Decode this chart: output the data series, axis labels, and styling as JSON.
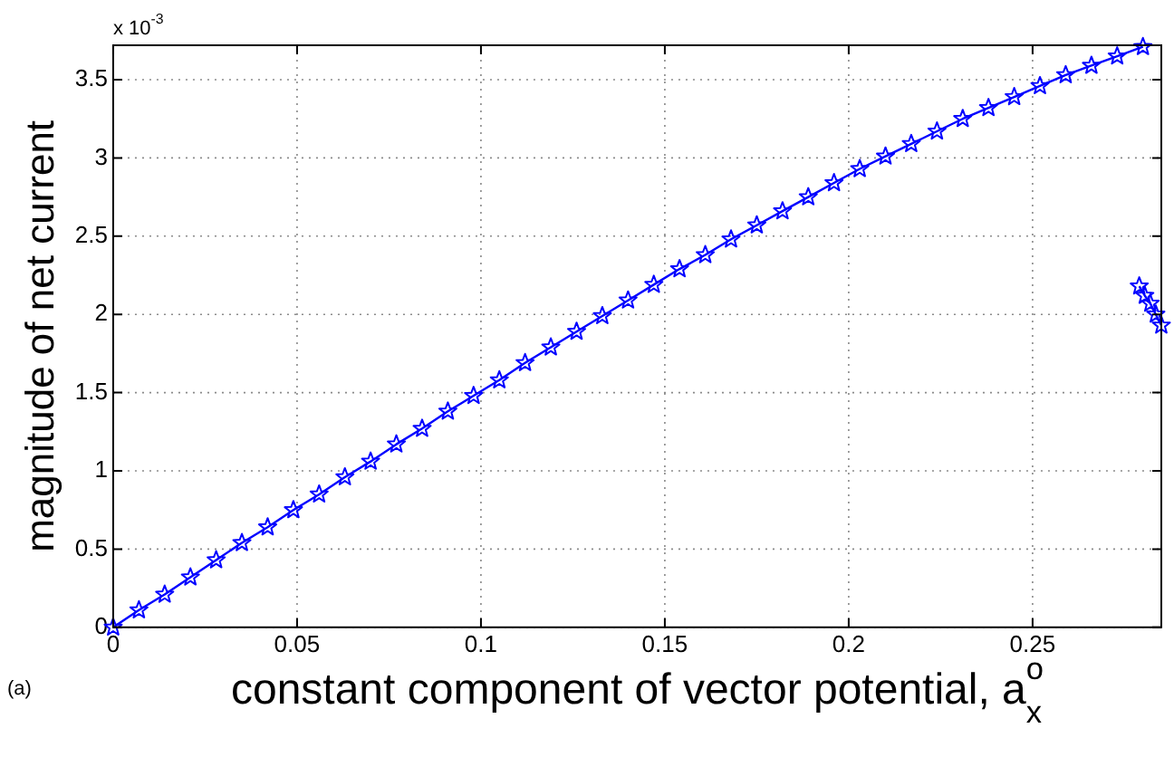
{
  "chart_data": {
    "type": "line",
    "xlabel": "constant component of vector potential, a$_{x}$$^{o}$",
    "ylabel": "magnitude of net current",
    "annotations": [
      "x 10$^{-3}$",
      "(a)"
    ],
    "series": [
      {
        "color": "#0000ff",
        "x": [
          0,
          0.007,
          0.014,
          0.021,
          0.028,
          0.035,
          0.042,
          0.049,
          0.056,
          0.063,
          0.07,
          0.077,
          0.084,
          0.091,
          0.098,
          0.105,
          0.112,
          0.119,
          0.126,
          0.133,
          0.14,
          0.147,
          0.154,
          0.161,
          0.168,
          0.175,
          0.182,
          0.189,
          0.196,
          0.203,
          0.21,
          0.217,
          0.224,
          0.231,
          0.238,
          0.245,
          0.252,
          0.259,
          0.266,
          0.273,
          0.28
        ],
        "values": [
          0,
          0.11,
          0.21,
          0.32,
          0.43,
          0.54,
          0.64,
          0.75,
          0.85,
          0.96,
          1.06,
          1.17,
          1.27,
          1.38,
          1.48,
          1.58,
          1.69,
          1.79,
          1.89,
          1.99,
          2.09,
          2.19,
          2.29,
          2.38,
          2.48,
          2.57,
          2.66,
          2.75,
          2.84,
          2.93,
          3.01,
          3.09,
          3.17,
          3.25,
          3.32,
          3.39,
          3.46,
          3.53,
          3.59,
          3.65,
          3.71
        ]
      },
      {
        "color": "#0000ff",
        "x": [
          0.279,
          0.2805,
          0.282,
          0.2835,
          0.285
        ],
        "values": [
          2.18,
          2.12,
          2.07,
          2.0,
          1.93
        ]
      }
    ],
    "xlim": [
      0,
      0.285
    ],
    "ylim": [
      0,
      3.72
    ],
    "xticks": [
      0,
      0.05,
      0.1,
      0.15,
      0.2,
      0.25
    ],
    "yticks": [
      0,
      0.5,
      1,
      1.5,
      2,
      2.5,
      3,
      3.5
    ],
    "grid": true,
    "legend": false,
    "marker": "star",
    "line_style": "solid"
  }
}
